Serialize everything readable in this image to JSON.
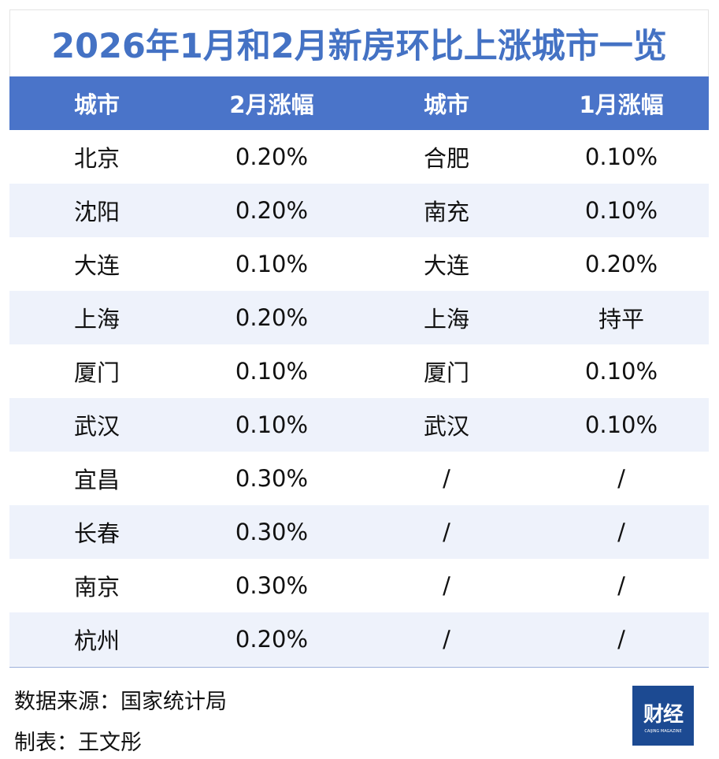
{
  "title": "2026年1月和2月新房环比上涨城市一览",
  "headers": [
    "城市",
    "2月涨幅",
    "城市",
    "1月涨幅"
  ],
  "rows": [
    [
      "北京",
      "0.20%",
      "合肥",
      "0.10%"
    ],
    [
      "沈阳",
      "0.20%",
      "南充",
      "0.10%"
    ],
    [
      "大连",
      "0.10%",
      "大连",
      "0.20%"
    ],
    [
      "上海",
      "0.20%",
      "上海",
      "持平"
    ],
    [
      "厦门",
      "0.10%",
      "厦门",
      "0.10%"
    ],
    [
      "武汉",
      "0.10%",
      "武汉",
      "0.10%"
    ],
    [
      "宜昌",
      "0.30%",
      "/",
      "/"
    ],
    [
      "长春",
      "0.30%",
      "/",
      "/"
    ],
    [
      "南京",
      "0.30%",
      "/",
      "/"
    ],
    [
      "杭州",
      "0.20%",
      "/",
      "/"
    ]
  ],
  "footer": {
    "source": "数据来源：国家统计局",
    "author": "制表：王文彤"
  },
  "logo": {
    "main": "财经",
    "sub": "CAIJING MAGAZINE"
  }
}
